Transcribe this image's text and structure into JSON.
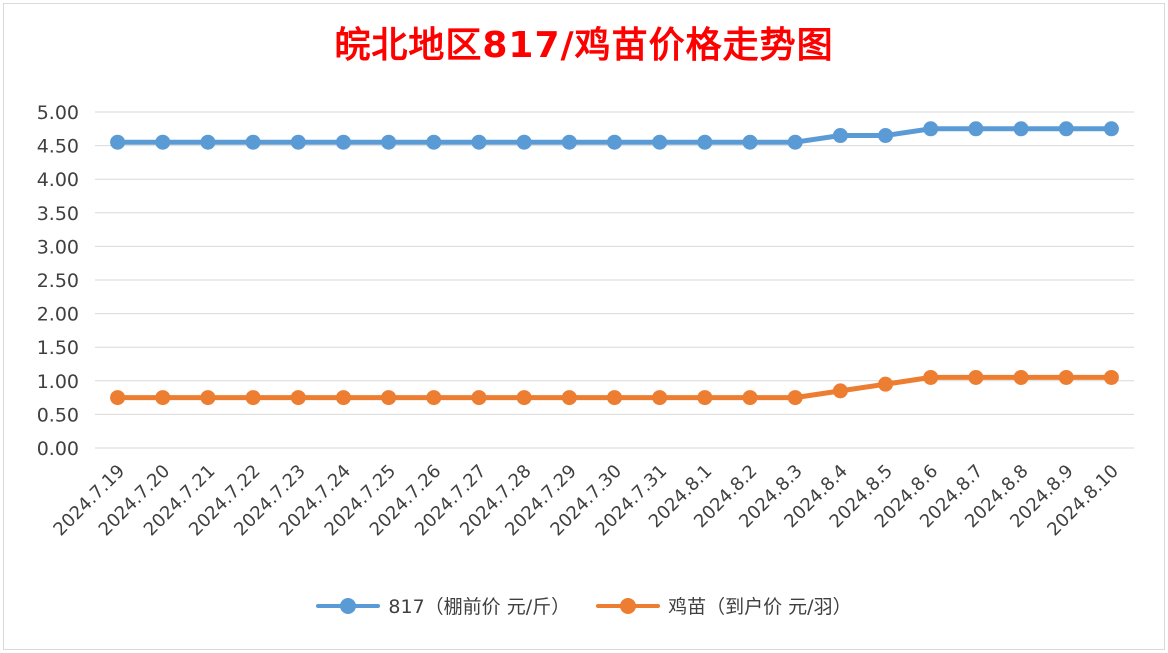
{
  "chart_data": {
    "type": "line",
    "title": "皖北地区817/鸡苗价格走势图",
    "categories": [
      "2024.7.19",
      "2024.7.20",
      "2024.7.21",
      "2024.7.22",
      "2024.7.23",
      "2024.7.24",
      "2024.7.25",
      "2024.7.26",
      "2024.7.27",
      "2024.7.28",
      "2024.7.29",
      "2024.7.30",
      "2024.7.31",
      "2024.8.1",
      "2024.8.2",
      "2024.8.3",
      "2024.8.4",
      "2024.8.5",
      "2024.8.6",
      "2024.8.7",
      "2024.8.8",
      "2024.8.9",
      "2024.8.10"
    ],
    "series": [
      {
        "name": "817（棚前价 元/斤）",
        "color": "#5b9bd5",
        "values": [
          4.55,
          4.55,
          4.55,
          4.55,
          4.55,
          4.55,
          4.55,
          4.55,
          4.55,
          4.55,
          4.55,
          4.55,
          4.55,
          4.55,
          4.55,
          4.55,
          4.65,
          4.65,
          4.75,
          4.75,
          4.75,
          4.75,
          4.75
        ]
      },
      {
        "name": "鸡苗（到户价 元/羽）",
        "color": "#ed7d31",
        "values": [
          0.75,
          0.75,
          0.75,
          0.75,
          0.75,
          0.75,
          0.75,
          0.75,
          0.75,
          0.75,
          0.75,
          0.75,
          0.75,
          0.75,
          0.75,
          0.75,
          0.85,
          0.95,
          1.05,
          1.05,
          1.05,
          1.05,
          1.05
        ]
      }
    ],
    "yticks": [
      "0.00",
      "0.50",
      "1.00",
      "1.50",
      "2.00",
      "2.50",
      "3.00",
      "3.50",
      "4.00",
      "4.50",
      "5.00"
    ],
    "ylim": [
      0,
      5
    ],
    "grid": true,
    "legend": "bottom"
  }
}
